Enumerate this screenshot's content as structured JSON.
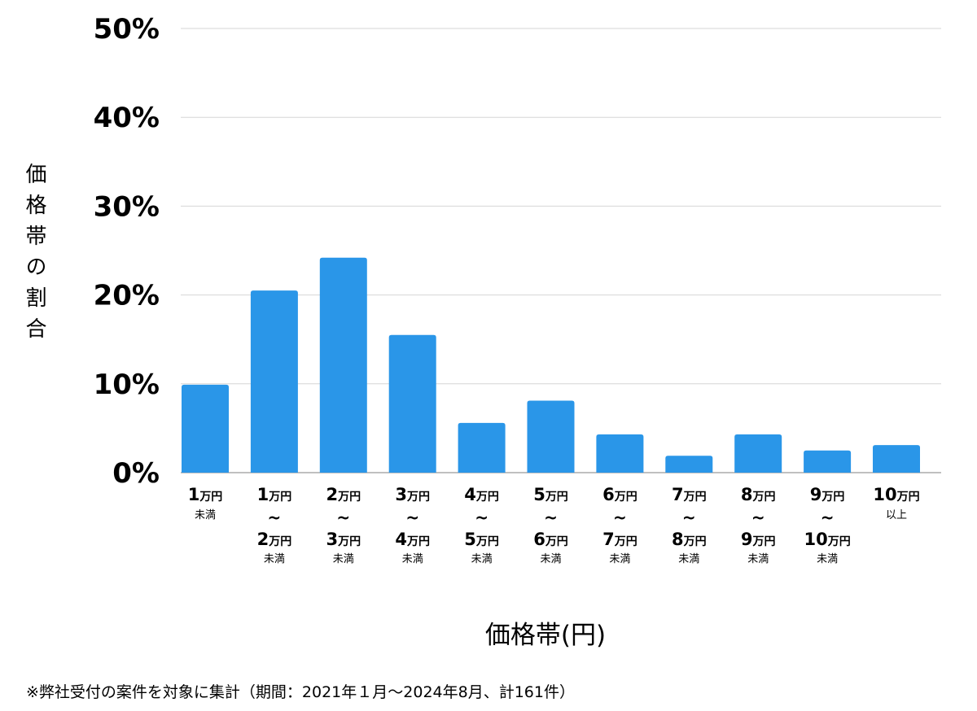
{
  "chart_data": {
    "type": "bar",
    "ylabel": "価格帯の割合",
    "xlabel": "価格帯(円)",
    "ylim": [
      0,
      50
    ],
    "yticks": [
      "0%",
      "10%",
      "20%",
      "30%",
      "40%",
      "50%"
    ],
    "ytick_values": [
      0,
      10,
      20,
      30,
      40,
      50
    ],
    "grid": true,
    "bar_color": "#2a96e8",
    "categories": [
      {
        "lines": [
          {
            "num": "1",
            "unit": "万円"
          }
        ],
        "sub": "未満"
      },
      {
        "lines": [
          {
            "num": "1",
            "unit": "万円"
          },
          {
            "num": "2",
            "unit": "万円"
          }
        ],
        "tilde": "~",
        "sub": "未満"
      },
      {
        "lines": [
          {
            "num": "2",
            "unit": "万円"
          },
          {
            "num": "3",
            "unit": "万円"
          }
        ],
        "tilde": "~",
        "sub": "未満"
      },
      {
        "lines": [
          {
            "num": "3",
            "unit": "万円"
          },
          {
            "num": "4",
            "unit": "万円"
          }
        ],
        "tilde": "~",
        "sub": "未満"
      },
      {
        "lines": [
          {
            "num": "4",
            "unit": "万円"
          },
          {
            "num": "5",
            "unit": "万円"
          }
        ],
        "tilde": "~",
        "sub": "未満"
      },
      {
        "lines": [
          {
            "num": "5",
            "unit": "万円"
          },
          {
            "num": "6",
            "unit": "万円"
          }
        ],
        "tilde": "~",
        "sub": "未満"
      },
      {
        "lines": [
          {
            "num": "6",
            "unit": "万円"
          },
          {
            "num": "7",
            "unit": "万円"
          }
        ],
        "tilde": "~",
        "sub": "未満"
      },
      {
        "lines": [
          {
            "num": "7",
            "unit": "万円"
          },
          {
            "num": "8",
            "unit": "万円"
          }
        ],
        "tilde": "~",
        "sub": "未満"
      },
      {
        "lines": [
          {
            "num": "8",
            "unit": "万円"
          },
          {
            "num": "9",
            "unit": "万円"
          }
        ],
        "tilde": "~",
        "sub": "未満"
      },
      {
        "lines": [
          {
            "num": "9",
            "unit": "万円"
          },
          {
            "num": "10",
            "unit": "万円"
          }
        ],
        "tilde": "~",
        "sub": "未満"
      },
      {
        "lines": [
          {
            "num": "10",
            "unit": "万円"
          }
        ],
        "sub": "以上"
      }
    ],
    "values": [
      9.9,
      20.5,
      24.2,
      15.5,
      5.6,
      8.1,
      4.3,
      1.9,
      4.3,
      2.5,
      3.1
    ]
  },
  "footnote": "※弊社受付の案件を対象に集計（期間：2021年１月〜2024年8月、計161件）"
}
